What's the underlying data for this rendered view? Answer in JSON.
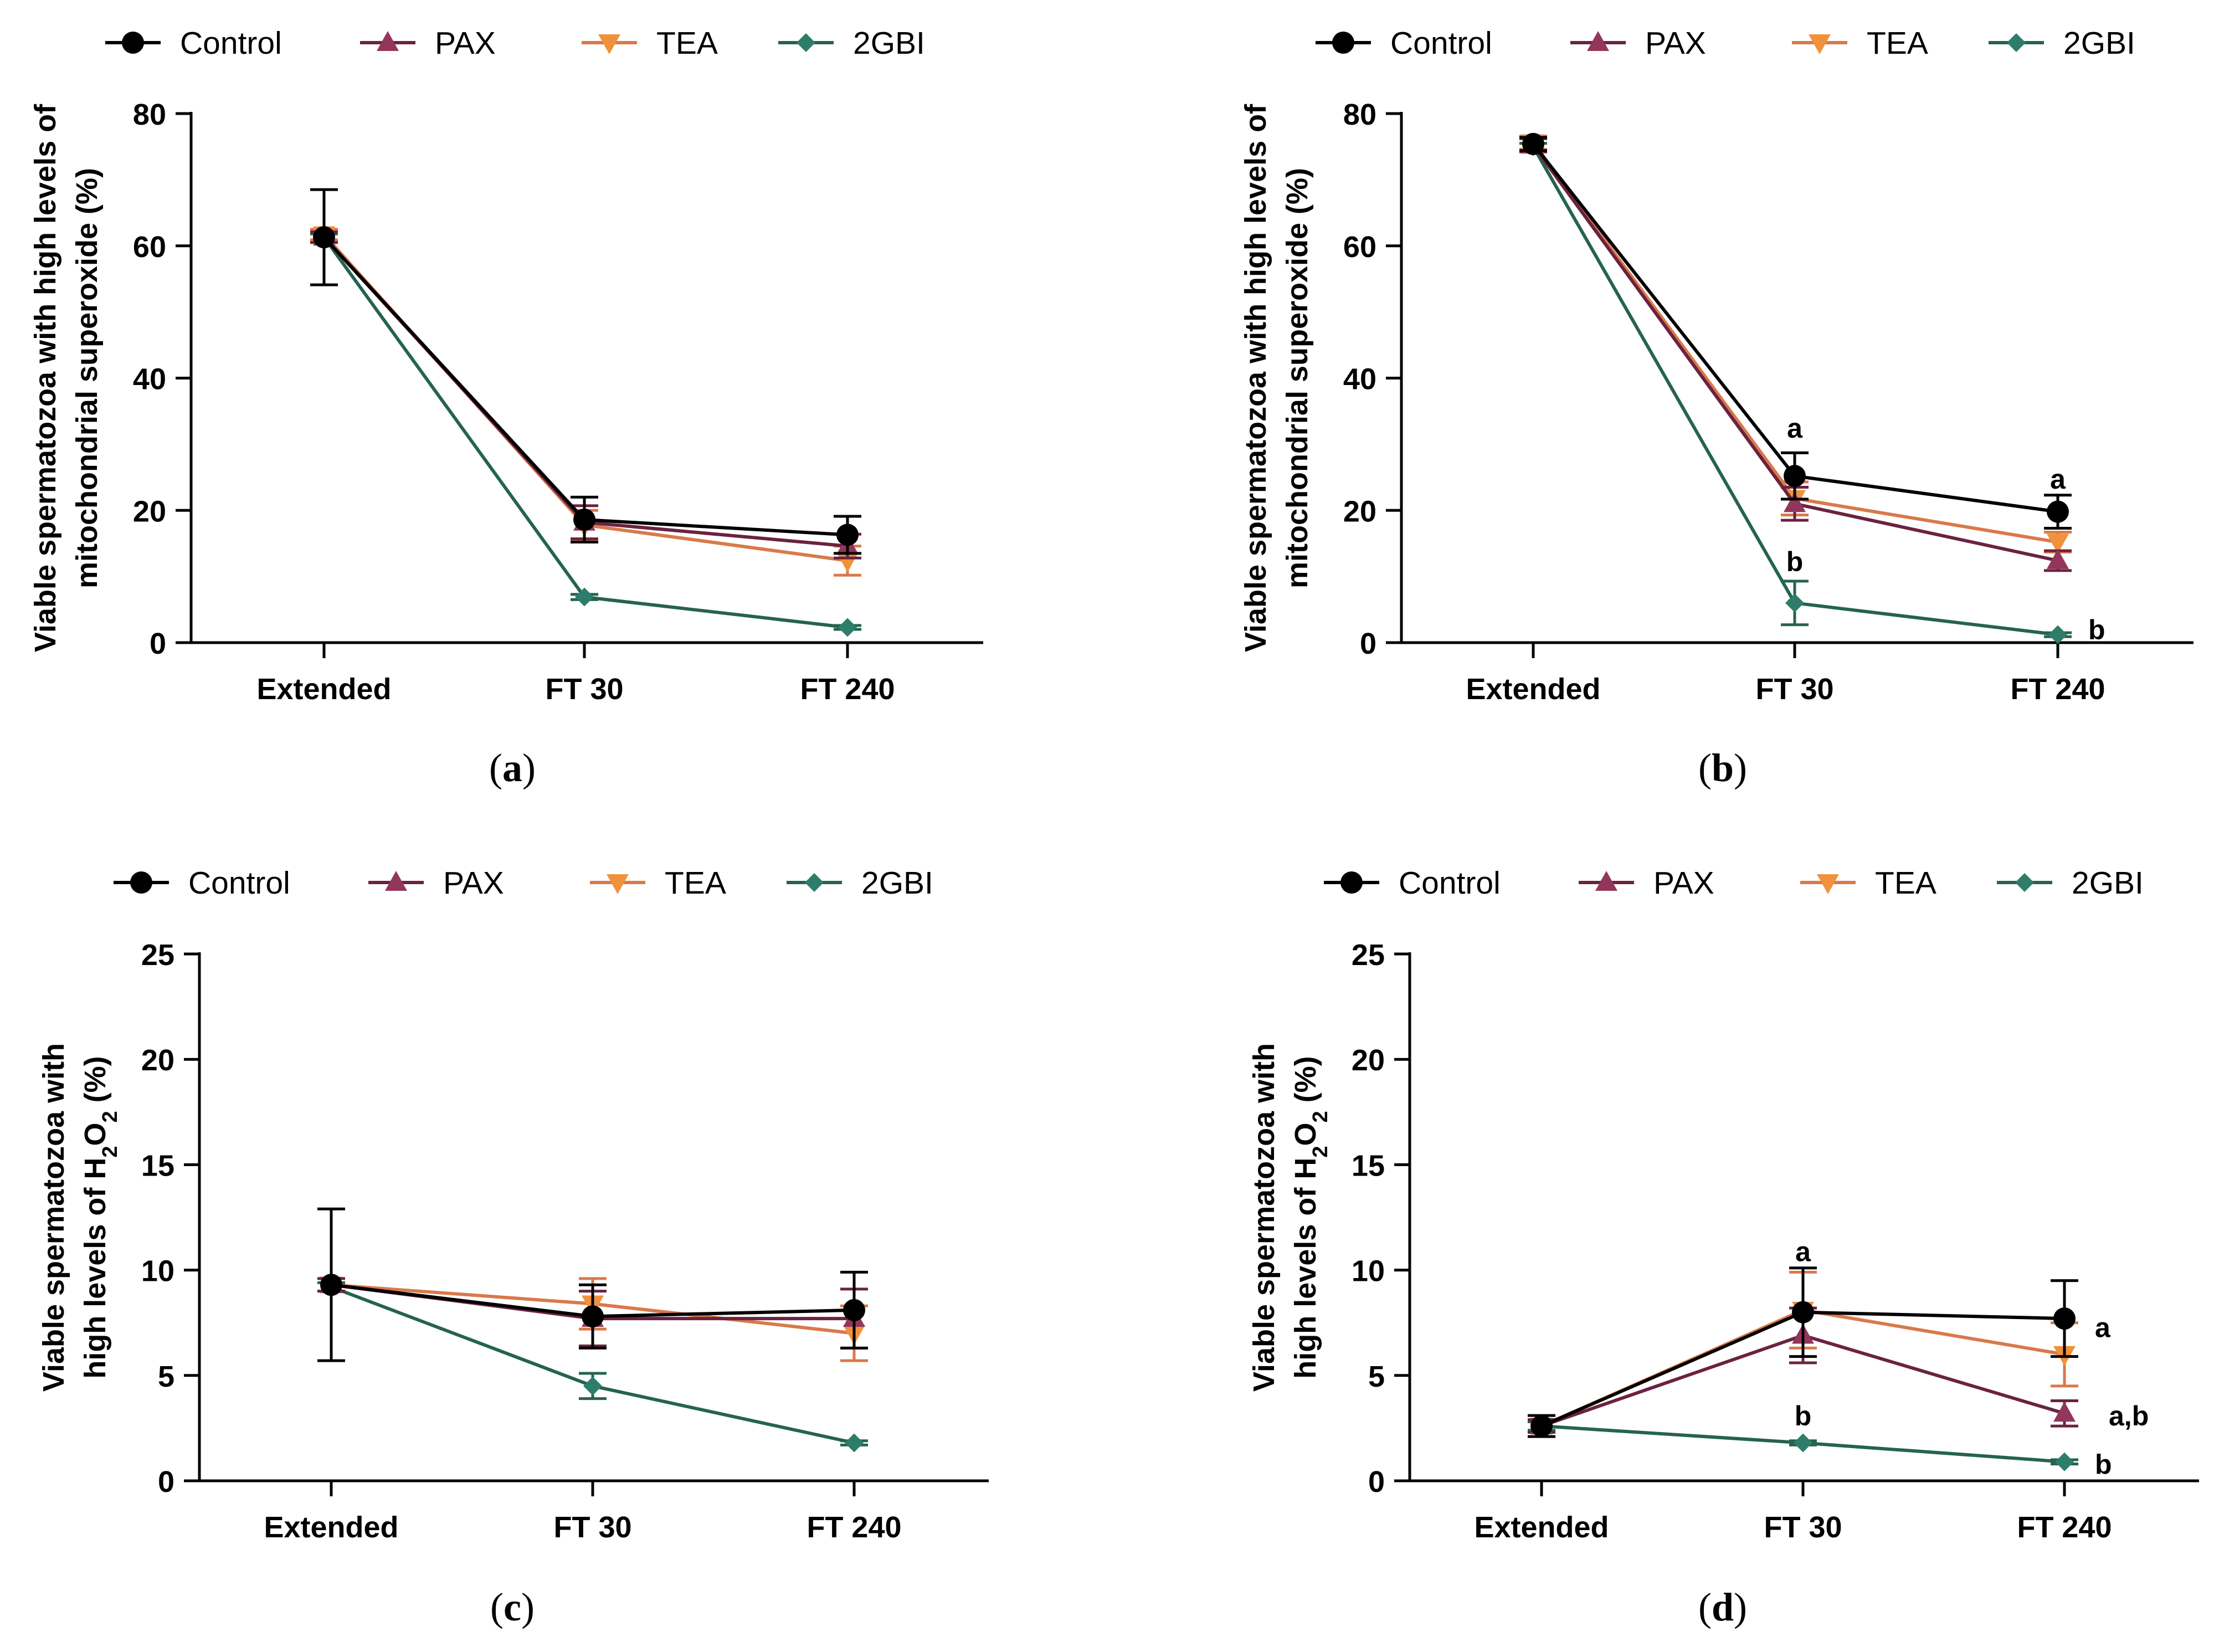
{
  "figure": {
    "x_categories": [
      "Extended",
      "FT 30",
      "FT 240"
    ],
    "series_colors": {
      "Control": "#000000",
      "PAX": "#93365b",
      "TEA": "#f0923c",
      "2GBI": "#2e7d6b"
    },
    "line_colors": {
      "Control": "#000000",
      "PAX": "#6b2240",
      "TEA": "#d9794a",
      "2GBI": "#25634f"
    }
  },
  "chart_data": [
    {
      "id": "a",
      "type": "line",
      "panel_label": "(a)",
      "legend": [
        "Control",
        "PAX",
        "TEA",
        "2GBI"
      ],
      "ylabel_lines": [
        "Viable spermatozoa with high levels of",
        "mitochondrial superoxide (%)"
      ],
      "ylim": [
        0,
        80
      ],
      "yticks": [
        0,
        20,
        40,
        60,
        80
      ],
      "categories": [
        "Extended",
        "FT 30",
        "FT 240"
      ],
      "series": [
        {
          "name": "Control",
          "values": [
            61.3,
            18.6,
            16.3
          ],
          "err": [
            7.2,
            3.4,
            2.8
          ]
        },
        {
          "name": "PAX",
          "values": [
            61.3,
            18.2,
            14.6
          ],
          "err": [
            0.8,
            2.5,
            1.8
          ]
        },
        {
          "name": "TEA",
          "values": [
            61.7,
            17.8,
            12.4
          ],
          "err": [
            0.8,
            2.2,
            2.2
          ]
        },
        {
          "name": "2GBI",
          "values": [
            61.3,
            6.9,
            2.3
          ],
          "err": [
            0.5,
            0.4,
            0.3
          ]
        }
      ],
      "annotations": []
    },
    {
      "id": "b",
      "type": "line",
      "panel_label": "(b)",
      "legend": [
        "Control",
        "PAX",
        "TEA",
        "2GBI"
      ],
      "ylabel_lines": [
        "Viable spermatozoa with high levels of",
        "mitochondrial superoxide (%)"
      ],
      "ylim": [
        0,
        80
      ],
      "yticks": [
        0,
        20,
        40,
        60,
        80
      ],
      "categories": [
        "Extended",
        "FT 30",
        "FT 240"
      ],
      "series": [
        {
          "name": "Control",
          "values": [
            75.4,
            25.2,
            19.8
          ],
          "err": [
            1.0,
            3.5,
            2.5
          ]
        },
        {
          "name": "PAX",
          "values": [
            75.2,
            21.0,
            12.4
          ],
          "err": [
            1.0,
            2.5,
            1.5
          ]
        },
        {
          "name": "TEA",
          "values": [
            75.6,
            21.8,
            15.2
          ],
          "err": [
            1.0,
            2.5,
            1.5
          ]
        },
        {
          "name": "2GBI",
          "values": [
            75.0,
            6.0,
            1.2
          ],
          "err": [
            0.5,
            3.3,
            0.3
          ]
        }
      ],
      "annotations": [
        {
          "text": "a",
          "cat": 1,
          "value": 32.5,
          "dx": 0
        },
        {
          "text": "b",
          "cat": 1,
          "value": 12.3,
          "dx": 0
        },
        {
          "text": "a",
          "cat": 2,
          "value": 24.8,
          "dx": 0
        },
        {
          "text": "b",
          "cat": 2,
          "value": 2.0,
          "dx": 55
        }
      ]
    },
    {
      "id": "c",
      "type": "line",
      "panel_label": "(c)",
      "legend": [
        "Control",
        "PAX",
        "TEA",
        "2GBI"
      ],
      "ylabel_lines": [
        "Viable spermatozoa with",
        "high levels of H2O2 (%)"
      ],
      "ylim": [
        0,
        25
      ],
      "yticks": [
        0,
        5,
        10,
        15,
        20,
        25
      ],
      "categories": [
        "Extended",
        "FT 30",
        "FT 240"
      ],
      "series": [
        {
          "name": "Control",
          "values": [
            9.3,
            7.8,
            8.1
          ],
          "err": [
            3.6,
            1.5,
            1.8
          ]
        },
        {
          "name": "PAX",
          "values": [
            9.3,
            7.7,
            7.7
          ],
          "err": [
            0.3,
            1.3,
            1.4
          ]
        },
        {
          "name": "TEA",
          "values": [
            9.3,
            8.4,
            7.0
          ],
          "err": [
            0.3,
            1.2,
            1.3
          ]
        },
        {
          "name": "2GBI",
          "values": [
            9.2,
            4.5,
            1.8
          ],
          "err": [
            0.2,
            0.6,
            0.1
          ]
        }
      ],
      "annotations": []
    },
    {
      "id": "d",
      "type": "line",
      "panel_label": "(d)",
      "legend": [
        "Control",
        "PAX",
        "TEA",
        "2GBI"
      ],
      "ylabel_lines": [
        "Viable spermatozoa with",
        "high levels of H2O2 (%)"
      ],
      "ylim": [
        0,
        25
      ],
      "yticks": [
        0,
        5,
        10,
        15,
        20,
        25
      ],
      "categories": [
        "Extended",
        "FT 30",
        "FT 240"
      ],
      "series": [
        {
          "name": "Control",
          "values": [
            2.6,
            8.0,
            7.7
          ],
          "err": [
            0.5,
            2.1,
            1.8
          ]
        },
        {
          "name": "PAX",
          "values": [
            2.6,
            6.9,
            3.2
          ],
          "err": [
            0.3,
            1.3,
            0.6
          ]
        },
        {
          "name": "TEA",
          "values": [
            2.6,
            8.1,
            6.0
          ],
          "err": [
            0.3,
            1.8,
            1.5
          ]
        },
        {
          "name": "2GBI",
          "values": [
            2.6,
            1.8,
            0.9
          ],
          "err": [
            0.2,
            0.1,
            0.1
          ]
        }
      ],
      "annotations": [
        {
          "text": "a",
          "cat": 1,
          "value": 10.9,
          "dx": 0
        },
        {
          "text": "b",
          "cat": 1,
          "value": 3.1,
          "dx": 0
        },
        {
          "text": "a",
          "cat": 2,
          "value": 7.3,
          "dx": 55
        },
        {
          "text": "a,b",
          "cat": 2,
          "value": 3.1,
          "dx": 80
        },
        {
          "text": "b",
          "cat": 2,
          "value": 0.8,
          "dx": 55
        }
      ]
    }
  ]
}
